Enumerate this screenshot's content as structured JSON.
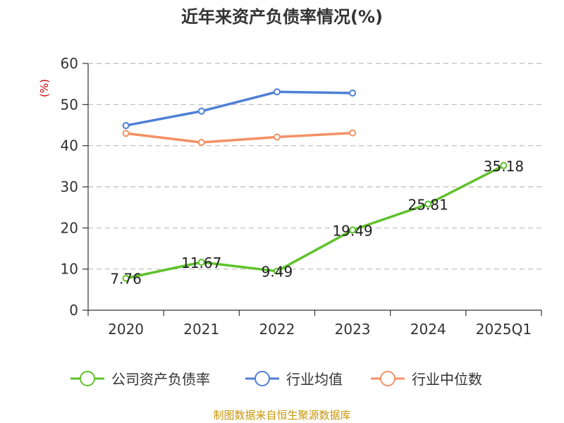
{
  "chart_data": {
    "type": "line",
    "title": "近年来资产负债率情况(%)",
    "ylabel": "(%)",
    "categories": [
      "2020",
      "2021",
      "2022",
      "2023",
      "2024",
      "2025Q1"
    ],
    "ylim": [
      0,
      60
    ],
    "yticks": [
      0,
      10,
      20,
      30,
      40,
      50,
      60
    ],
    "grid": true,
    "legend": "bottom",
    "series": [
      {
        "name": "公司资产负债率",
        "color": "#5ec22b",
        "values": [
          7.76,
          11.67,
          9.49,
          19.49,
          25.81,
          35.18
        ],
        "labels": [
          "7.76",
          "11.67",
          "9.49",
          "19.49",
          "25.81",
          "35.18"
        ]
      },
      {
        "name": "行业均值",
        "color": "#4f7fd6",
        "values": [
          44.9,
          48.4,
          53.1,
          52.8,
          null,
          null
        ]
      },
      {
        "name": "行业中位数",
        "color": "#f39164",
        "values": [
          43.0,
          40.8,
          42.1,
          43.1,
          null,
          null
        ]
      }
    ]
  },
  "source": "制图数据来自恒生聚源数据库"
}
